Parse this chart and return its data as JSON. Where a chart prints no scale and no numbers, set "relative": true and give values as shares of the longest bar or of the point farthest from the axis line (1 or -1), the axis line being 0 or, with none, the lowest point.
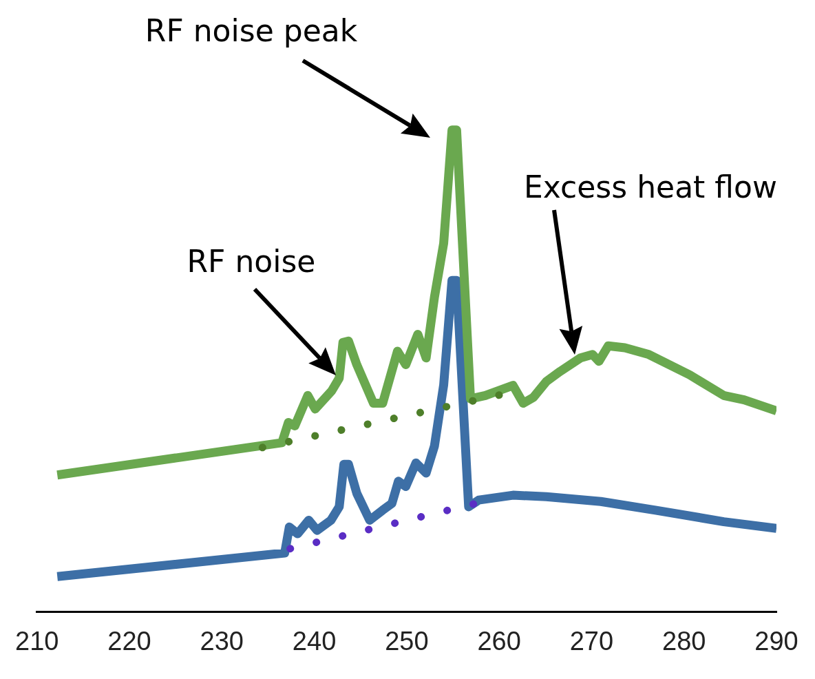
{
  "chart_data": {
    "type": "line",
    "relative": true,
    "xlim": [
      210,
      290
    ],
    "xticks": [
      210,
      220,
      230,
      240,
      250,
      260,
      270,
      280,
      290
    ],
    "legend": false,
    "grid": false,
    "marker": "none",
    "line_style": "solid",
    "annotations": [
      "RF noise peak",
      "RF noise",
      "Excess heat flow"
    ],
    "series": [
      {
        "color": "#6aa84f",
        "x": [
          212.2,
          236.5,
          237.2,
          237.9,
          239.3,
          240.1,
          241.9,
          242.7,
          243.1,
          243.7,
          244.6,
          246.4,
          247.4,
          249.0,
          249.9,
          251.2,
          252.1,
          253.0,
          254.0,
          254.9,
          255.4,
          256.9,
          258.5,
          261.5,
          262.6,
          263.7,
          265.1,
          266.6,
          268.8,
          270.1,
          270.8,
          271.8,
          273.6,
          276.2,
          280.6,
          284.3,
          286.5,
          290
        ],
        "values": [
          0.284,
          0.351,
          0.393,
          0.386,
          0.449,
          0.421,
          0.459,
          0.485,
          0.559,
          0.562,
          0.513,
          0.433,
          0.433,
          0.541,
          0.513,
          0.576,
          0.527,
          0.653,
          0.765,
          1.0,
          1.0,
          0.442,
          0.449,
          0.47,
          0.433,
          0.445,
          0.478,
          0.499,
          0.527,
          0.534,
          0.52,
          0.552,
          0.548,
          0.534,
          0.492,
          0.449,
          0.44,
          0.417
        ]
      },
      {
        "color": "#3d6fa6",
        "x": [
          212.2,
          236.8,
          237.3,
          238.2,
          239.4,
          240.3,
          241.8,
          242.7,
          243.2,
          243.7,
          244.6,
          246.0,
          247.4,
          248.4,
          249.1,
          249.9,
          251.0,
          252.1,
          253.0,
          254.0,
          254.9,
          255.4,
          256.7,
          257.8,
          261.5,
          265.1,
          271.0,
          276.9,
          284.3,
          290
        ],
        "values": [
          0.073,
          0.122,
          0.176,
          0.162,
          0.19,
          0.169,
          0.19,
          0.218,
          0.306,
          0.306,
          0.246,
          0.19,
          0.211,
          0.225,
          0.271,
          0.26,
          0.309,
          0.288,
          0.344,
          0.471,
          0.688,
          0.688,
          0.218,
          0.232,
          0.242,
          0.239,
          0.229,
          0.211,
          0.187,
          0.173
        ]
      },
      {
        "color": "#4e7f2a",
        "line_style": "dotted",
        "x": [
          234.4,
          260.5
        ],
        "values": [
          0.341,
          0.452
        ]
      },
      {
        "color": "#5a2dc4",
        "line_style": "dotted",
        "x": [
          237.4,
          257.5
        ],
        "values": [
          0.131,
          0.225
        ]
      }
    ]
  }
}
